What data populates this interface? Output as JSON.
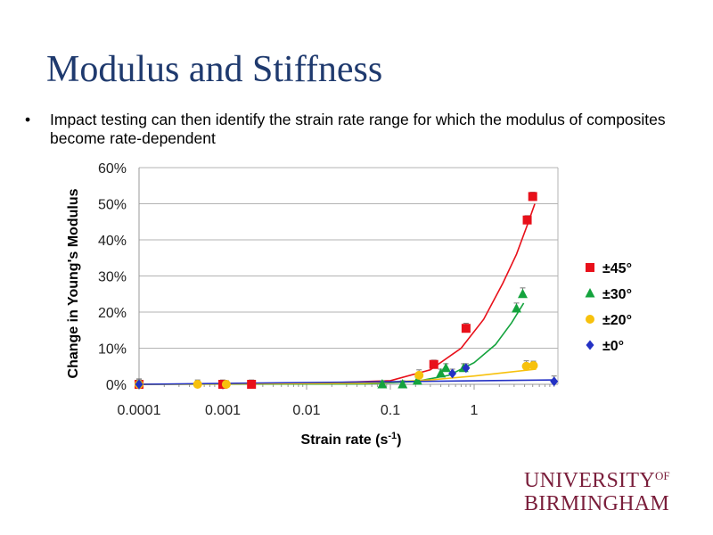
{
  "slide": {
    "title": "Modulus and Stiffness",
    "bullet_symbol": "•",
    "bullet_text": "Impact testing can then identify the strain rate range for which the modulus of composites become rate-dependent"
  },
  "logo": {
    "line1": "UNIVERSITY",
    "of": "OF",
    "line2": "BIRMINGHAM",
    "color": "#7a1e3b"
  },
  "chart_data": {
    "type": "scatter",
    "xscale": "log",
    "xlabel": "Strain rate (s",
    "xlabel_sup": "-1",
    "xlabel_close": ")",
    "ylabel": "Change in Young's Modulus",
    "xlim": [
      0.0001,
      10
    ],
    "ylim": [
      0,
      0.6
    ],
    "xticks": [
      {
        "value": 0.0001,
        "label": "0.0001"
      },
      {
        "value": 0.001,
        "label": "0.001"
      },
      {
        "value": 0.01,
        "label": "0.01"
      },
      {
        "value": 0.1,
        "label": "0.1"
      },
      {
        "value": 1,
        "label": "1"
      }
    ],
    "yticks": [
      {
        "value": 0,
        "label": "0%"
      },
      {
        "value": 0.1,
        "label": "10%"
      },
      {
        "value": 0.2,
        "label": "20%"
      },
      {
        "value": 0.3,
        "label": "30%"
      },
      {
        "value": 0.4,
        "label": "40%"
      },
      {
        "value": 0.5,
        "label": "50%"
      },
      {
        "value": 0.6,
        "label": "60%"
      }
    ],
    "grid": "horizontal",
    "legend_position": "right",
    "series": [
      {
        "name": "±45°",
        "marker": "square",
        "color": "#e8101a",
        "points": [
          {
            "x": 0.0001,
            "y": 0.0,
            "err": 0.015
          },
          {
            "x": 0.001,
            "y": 0.0,
            "err": 0.012
          },
          {
            "x": 0.0022,
            "y": 0.0,
            "err": 0.012
          },
          {
            "x": 0.33,
            "y": 0.055,
            "err": 0.012
          },
          {
            "x": 0.8,
            "y": 0.155,
            "err": 0.014
          },
          {
            "x": 4.3,
            "y": 0.455,
            "err": 0.012
          },
          {
            "x": 5.0,
            "y": 0.52,
            "err": 0.012
          }
        ],
        "trend": [
          {
            "x": 0.0001,
            "y": 0.0
          },
          {
            "x": 0.01,
            "y": 0.002
          },
          {
            "x": 0.1,
            "y": 0.01
          },
          {
            "x": 0.3,
            "y": 0.04
          },
          {
            "x": 0.7,
            "y": 0.1
          },
          {
            "x": 1.3,
            "y": 0.18
          },
          {
            "x": 2.2,
            "y": 0.28
          },
          {
            "x": 3.2,
            "y": 0.36
          },
          {
            "x": 4.3,
            "y": 0.44
          },
          {
            "x": 5.3,
            "y": 0.5
          }
        ]
      },
      {
        "name": "±30°",
        "marker": "triangle",
        "color": "#14a33d",
        "points": [
          {
            "x": 0.08,
            "y": 0.0,
            "err": 0.01
          },
          {
            "x": 0.14,
            "y": 0.0,
            "err": 0.01
          },
          {
            "x": 0.21,
            "y": 0.01,
            "err": 0.01
          },
          {
            "x": 0.4,
            "y": 0.03,
            "err": 0.012
          },
          {
            "x": 0.46,
            "y": 0.045,
            "err": 0.012
          },
          {
            "x": 0.75,
            "y": 0.045,
            "err": 0.012
          },
          {
            "x": 3.2,
            "y": 0.21,
            "err": 0.015
          },
          {
            "x": 3.8,
            "y": 0.25,
            "err": 0.017
          }
        ],
        "trend": [
          {
            "x": 0.0001,
            "y": 0.0
          },
          {
            "x": 0.05,
            "y": 0.001
          },
          {
            "x": 0.2,
            "y": 0.008
          },
          {
            "x": 0.5,
            "y": 0.025
          },
          {
            "x": 1.0,
            "y": 0.06
          },
          {
            "x": 1.8,
            "y": 0.11
          },
          {
            "x": 2.8,
            "y": 0.17
          },
          {
            "x": 3.9,
            "y": 0.225
          }
        ]
      },
      {
        "name": "±20°",
        "marker": "circle",
        "color": "#f7c10d",
        "points": [
          {
            "x": 0.0001,
            "y": 0.0,
            "err": 0.012
          },
          {
            "x": 0.0005,
            "y": 0.0,
            "err": 0.012
          },
          {
            "x": 0.0011,
            "y": 0.0,
            "err": 0.01
          },
          {
            "x": 0.22,
            "y": 0.025,
            "err": 0.015
          },
          {
            "x": 4.2,
            "y": 0.05,
            "err": 0.015
          },
          {
            "x": 5.1,
            "y": 0.052,
            "err": 0.012
          }
        ],
        "trend": [
          {
            "x": 0.0001,
            "y": 0.0
          },
          {
            "x": 0.05,
            "y": 0.003
          },
          {
            "x": 0.3,
            "y": 0.012
          },
          {
            "x": 1.0,
            "y": 0.023
          },
          {
            "x": 2.5,
            "y": 0.033
          },
          {
            "x": 5.5,
            "y": 0.042
          }
        ]
      },
      {
        "name": "±0°",
        "marker": "diamond",
        "color": "#2431c4",
        "points": [
          {
            "x": 0.0001,
            "y": 0.0,
            "err": 0.008
          },
          {
            "x": 0.55,
            "y": 0.03,
            "err": 0.012
          },
          {
            "x": 0.8,
            "y": 0.045,
            "err": 0.012
          },
          {
            "x": 9.0,
            "y": 0.008,
            "err": 0.015
          }
        ],
        "trend": [
          {
            "x": 0.0001,
            "y": 0.0
          },
          {
            "x": 9.5,
            "y": 0.012
          }
        ]
      }
    ]
  }
}
